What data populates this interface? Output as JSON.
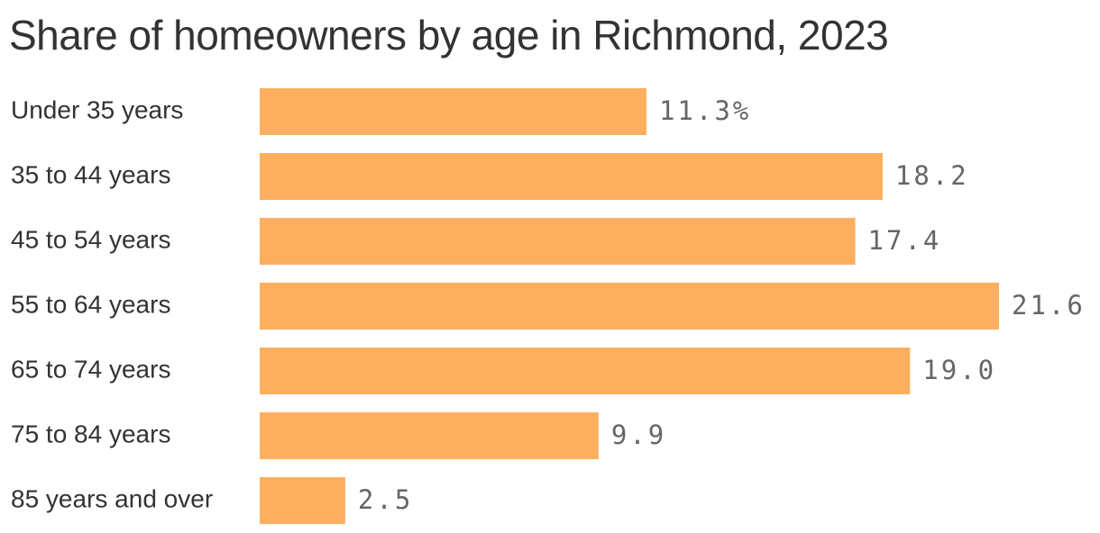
{
  "chart_data": {
    "type": "bar",
    "orientation": "horizontal",
    "title": "Share of homeowners by age in Richmond, 2023",
    "categories": [
      "Under 35 years",
      "35 to 44 years",
      "45 to 54 years",
      "55 to 64 years",
      "65 to 74 years",
      "75 to 84 years",
      "85 years and over"
    ],
    "values": [
      11.3,
      18.2,
      17.4,
      21.6,
      19.0,
      9.9,
      2.5
    ],
    "value_labels": [
      "11.3%",
      "18.2",
      "17.4",
      "21.6",
      "19.0",
      "9.9",
      "2.5"
    ],
    "xlim": [
      0,
      21.6
    ],
    "grid": false,
    "legend": "none",
    "bar_color": "#FDAF5F"
  }
}
